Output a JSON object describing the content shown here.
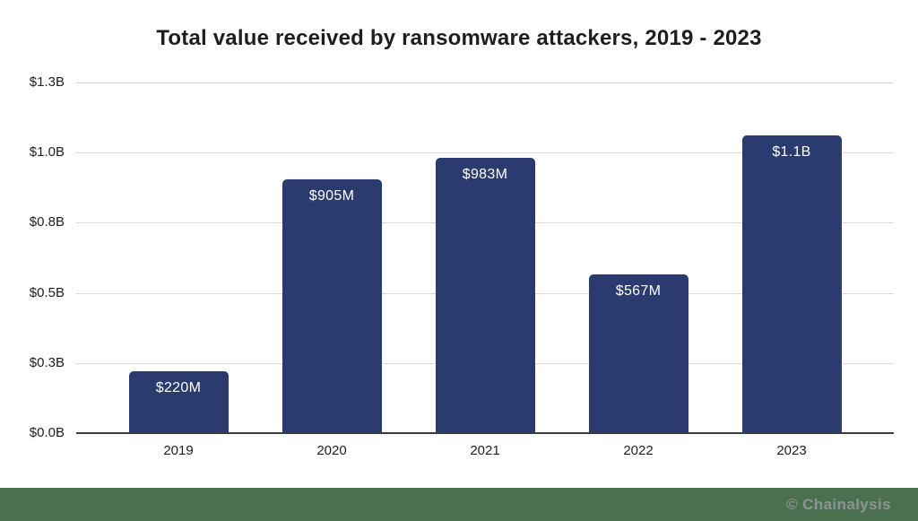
{
  "page": {
    "background": "#ffffff"
  },
  "chart_data": {
    "type": "bar",
    "title": "Total value received by ransomware attackers, 2019 - 2023",
    "categories": [
      "2019",
      "2020",
      "2021",
      "2022",
      "2023"
    ],
    "values_musd": [
      220,
      905,
      983,
      567,
      1060
    ],
    "bar_labels": [
      "$220M",
      "$905M",
      "$983M",
      "$567M",
      "$1.1B"
    ],
    "ylim_musd": [
      0,
      1250
    ],
    "y_ticks": [
      {
        "value_musd": 0,
        "label": "$0.0B"
      },
      {
        "value_musd": 250,
        "label": "$0.3B"
      },
      {
        "value_musd": 500,
        "label": "$0.5B"
      },
      {
        "value_musd": 750,
        "label": "$0.8B"
      },
      {
        "value_musd": 1000,
        "label": "$1.0B"
      },
      {
        "value_musd": 1250,
        "label": "$1.3B"
      }
    ],
    "xlabel": "",
    "ylabel": "",
    "grid": true,
    "legend": false,
    "colors": {
      "bar": "#2b3b70",
      "bar_label_text": "#ffffff",
      "gridline": "#d9d9d9",
      "axis_line": "#3c3c3c",
      "text": "#1e1e1e"
    }
  },
  "footer": {
    "brand": "© Chainalysis",
    "background": "#4a7050",
    "text_color": "#8f9296"
  }
}
